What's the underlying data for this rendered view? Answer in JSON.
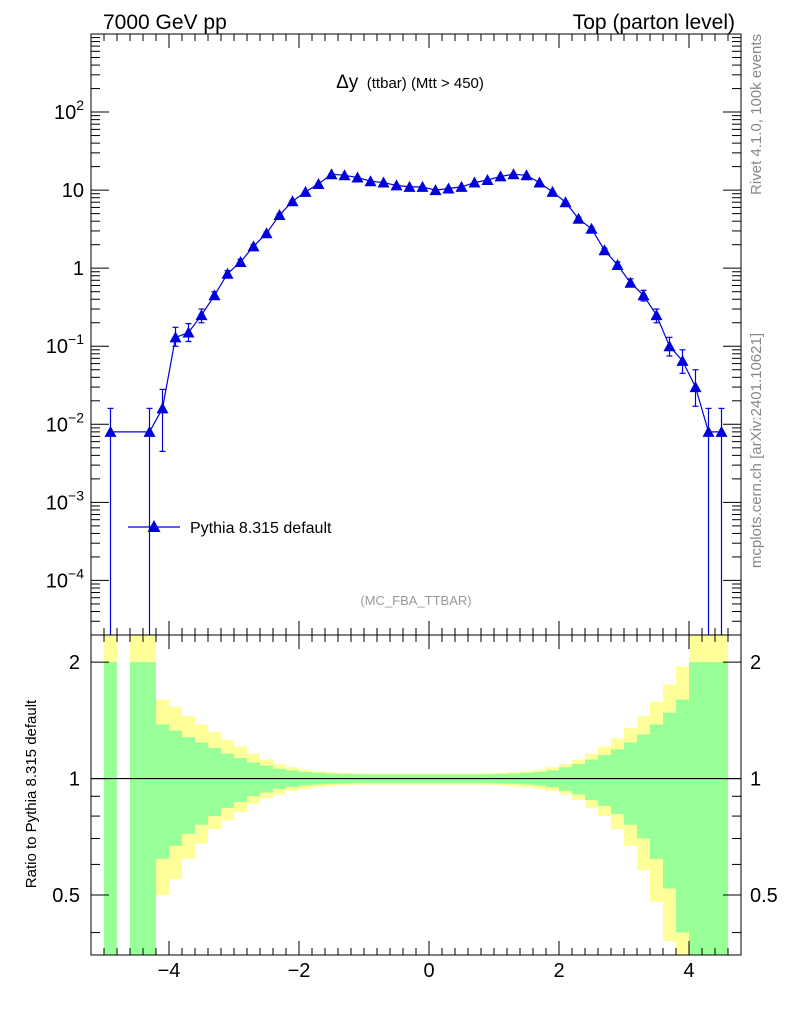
{
  "header": {
    "left": "7000 GeV pp",
    "right": "Top (parton level)"
  },
  "side_labels": {
    "rivet": "Rivet 4.1.0,  100k events",
    "mcplots": "mcplots.cern.ch [arXiv:2401.10621]"
  },
  "chart_data": [
    {
      "type": "line",
      "title_main": "Δy",
      "title_sub": "(ttbar) (Mtt > 450)",
      "analysis": "(MC_FBA_TTBAR)",
      "yscale": "log",
      "xlim": [
        -5.2,
        4.8
      ],
      "ylim": [
        2e-05,
        1000
      ],
      "x_ticks": [
        -4,
        -2,
        0,
        2,
        4
      ],
      "x_tick_labels": [
        "−4",
        "−2",
        "0",
        "2",
        "4"
      ],
      "y_ticks": [
        0.0001,
        0.001,
        0.01,
        0.1,
        1,
        10,
        100
      ],
      "y_tick_labels": [
        {
          "base": "10",
          "exp": "−4"
        },
        {
          "base": "10",
          "exp": "−3"
        },
        {
          "base": "10",
          "exp": "−2"
        },
        {
          "base": "10",
          "exp": "−1"
        },
        {
          "base": "1",
          "exp": ""
        },
        {
          "base": "10",
          "exp": ""
        },
        {
          "base": "10",
          "exp": "2"
        }
      ],
      "legend": "Pythia 8.315 default",
      "series": [
        {
          "name": "Pythia 8.315 default",
          "color": "#0000dd",
          "x": [
            -4.9,
            -4.3,
            -4.1,
            -3.9,
            -3.7,
            -3.5,
            -3.3,
            -3.1,
            -2.9,
            -2.7,
            -2.5,
            -2.3,
            -2.1,
            -1.9,
            -1.7,
            -1.5,
            -1.3,
            -1.1,
            -0.9,
            -0.7,
            -0.5,
            -0.3,
            -0.1,
            0.1,
            0.3,
            0.5,
            0.7,
            0.9,
            1.1,
            1.3,
            1.5,
            1.7,
            1.9,
            2.1,
            2.3,
            2.5,
            2.7,
            2.9,
            3.1,
            3.3,
            3.5,
            3.7,
            3.9,
            4.1,
            4.3,
            4.5
          ],
          "y": [
            0.008,
            0.008,
            0.016,
            0.13,
            0.15,
            0.25,
            0.45,
            0.85,
            1.2,
            1.9,
            2.8,
            4.8,
            7.2,
            9.5,
            12.0,
            16.0,
            15.5,
            14.5,
            13.0,
            12.5,
            11.5,
            11.0,
            11.0,
            10.0,
            10.5,
            11.0,
            12.5,
            13.5,
            15.0,
            16.0,
            15.5,
            12.5,
            9.5,
            7.0,
            4.3,
            3.2,
            1.7,
            1.1,
            0.65,
            0.45,
            0.25,
            0.1,
            0.065,
            0.03,
            0.008,
            0.008
          ],
          "err_up": [
            0.016,
            0.016,
            0.028,
            0.175,
            0.195,
            0.3,
            0.5,
            0.93,
            1.3,
            2.0,
            2.9,
            5.0,
            7.4,
            9.7,
            12.2,
            16.3,
            15.8,
            14.7,
            13.2,
            12.7,
            11.7,
            11.2,
            11.2,
            10.2,
            10.7,
            11.2,
            12.7,
            13.7,
            15.2,
            16.3,
            15.8,
            12.7,
            9.7,
            7.2,
            4.5,
            3.35,
            1.8,
            1.2,
            0.73,
            0.52,
            0.3,
            0.13,
            0.09,
            0.05,
            0.016,
            0.016
          ],
          "err_down": [
            1e-05,
            1e-05,
            0.0045,
            0.1,
            0.115,
            0.2,
            0.4,
            0.78,
            1.1,
            1.8,
            2.7,
            4.6,
            7.0,
            9.3,
            11.8,
            15.7,
            15.2,
            14.3,
            12.8,
            12.3,
            11.3,
            10.8,
            10.8,
            9.8,
            10.3,
            10.8,
            12.3,
            13.3,
            14.8,
            15.7,
            15.2,
            12.3,
            9.3,
            6.8,
            4.1,
            3.05,
            1.6,
            1.0,
            0.58,
            0.38,
            0.2,
            0.075,
            0.045,
            0.017,
            1e-05,
            1e-05
          ]
        }
      ]
    },
    {
      "type": "area",
      "ylabel": "Ratio to Pythia 8.315 default",
      "xlim": [
        -5.2,
        4.8
      ],
      "ylim": [
        0.35,
        2.35
      ],
      "yscale": "log",
      "x_ticks": [
        -4,
        -2,
        0,
        2,
        4
      ],
      "x_tick_labels": [
        "−4",
        "−2",
        "0",
        "2",
        "4"
      ],
      "y_ticks": [
        0.5,
        1,
        2
      ],
      "y_tick_labels": [
        "0.5",
        "1",
        "2"
      ],
      "reference_line": 1,
      "bands": [
        {
          "name": "1-sigma",
          "color": "#99ff99"
        },
        {
          "name": "2-sigma",
          "color": "#ffff99"
        }
      ],
      "bins_x": [
        -5.0,
        -4.8,
        -4.6,
        -4.4,
        -4.2,
        -4.0,
        -3.8,
        -3.6,
        -3.4,
        -3.2,
        -3.0,
        -2.8,
        -2.6,
        -2.4,
        -2.2,
        -2.0,
        -1.8,
        -1.6,
        -1.4,
        -1.2,
        -1.0,
        -0.8,
        -0.6,
        -0.4,
        -0.2,
        0.0,
        0.2,
        0.4,
        0.6,
        0.8,
        1.0,
        1.2,
        1.4,
        1.6,
        1.8,
        2.0,
        2.2,
        2.4,
        2.6,
        2.8,
        3.0,
        3.2,
        3.4,
        3.6,
        3.8,
        4.0,
        4.2,
        4.4,
        4.6
      ],
      "band1_lo": [
        0.3,
        null,
        0.3,
        0.3,
        0.62,
        0.67,
        0.72,
        0.76,
        0.8,
        0.84,
        0.87,
        0.9,
        0.92,
        0.94,
        0.95,
        0.96,
        0.965,
        0.97,
        0.972,
        0.974,
        0.975,
        0.975,
        0.975,
        0.975,
        0.975,
        0.975,
        0.975,
        0.975,
        0.975,
        0.974,
        0.972,
        0.97,
        0.965,
        0.96,
        0.95,
        0.93,
        0.91,
        0.88,
        0.85,
        0.81,
        0.76,
        0.7,
        0.62,
        0.52,
        0.4,
        0.3,
        0.3,
        0.3
      ],
      "band1_hi": [
        2.0,
        null,
        2.0,
        2.0,
        1.38,
        1.33,
        1.28,
        1.24,
        1.2,
        1.16,
        1.13,
        1.1,
        1.08,
        1.06,
        1.05,
        1.04,
        1.035,
        1.03,
        1.028,
        1.026,
        1.025,
        1.025,
        1.025,
        1.025,
        1.025,
        1.025,
        1.025,
        1.025,
        1.025,
        1.026,
        1.028,
        1.03,
        1.035,
        1.04,
        1.05,
        1.07,
        1.09,
        1.12,
        1.15,
        1.19,
        1.24,
        1.3,
        1.38,
        1.48,
        1.6,
        2.0,
        2.0,
        2.0
      ],
      "band2_lo": [
        0.3,
        null,
        0.3,
        0.3,
        0.5,
        0.55,
        0.62,
        0.68,
        0.74,
        0.78,
        0.82,
        0.86,
        0.89,
        0.91,
        0.93,
        0.94,
        0.95,
        0.955,
        0.96,
        0.963,
        0.965,
        0.965,
        0.965,
        0.965,
        0.965,
        0.965,
        0.965,
        0.965,
        0.965,
        0.963,
        0.96,
        0.955,
        0.95,
        0.94,
        0.93,
        0.91,
        0.88,
        0.84,
        0.8,
        0.74,
        0.67,
        0.58,
        0.48,
        0.38,
        0.3,
        0.3,
        0.3,
        0.3
      ],
      "band2_hi": [
        2.4,
        null,
        2.4,
        2.4,
        1.6,
        1.53,
        1.45,
        1.38,
        1.32,
        1.26,
        1.21,
        1.16,
        1.12,
        1.09,
        1.07,
        1.055,
        1.045,
        1.04,
        1.035,
        1.033,
        1.032,
        1.032,
        1.032,
        1.032,
        1.032,
        1.032,
        1.032,
        1.032,
        1.032,
        1.033,
        1.035,
        1.04,
        1.047,
        1.055,
        1.07,
        1.09,
        1.12,
        1.16,
        1.21,
        1.27,
        1.35,
        1.45,
        1.58,
        1.75,
        1.95,
        2.4,
        2.4,
        2.4
      ]
    }
  ]
}
